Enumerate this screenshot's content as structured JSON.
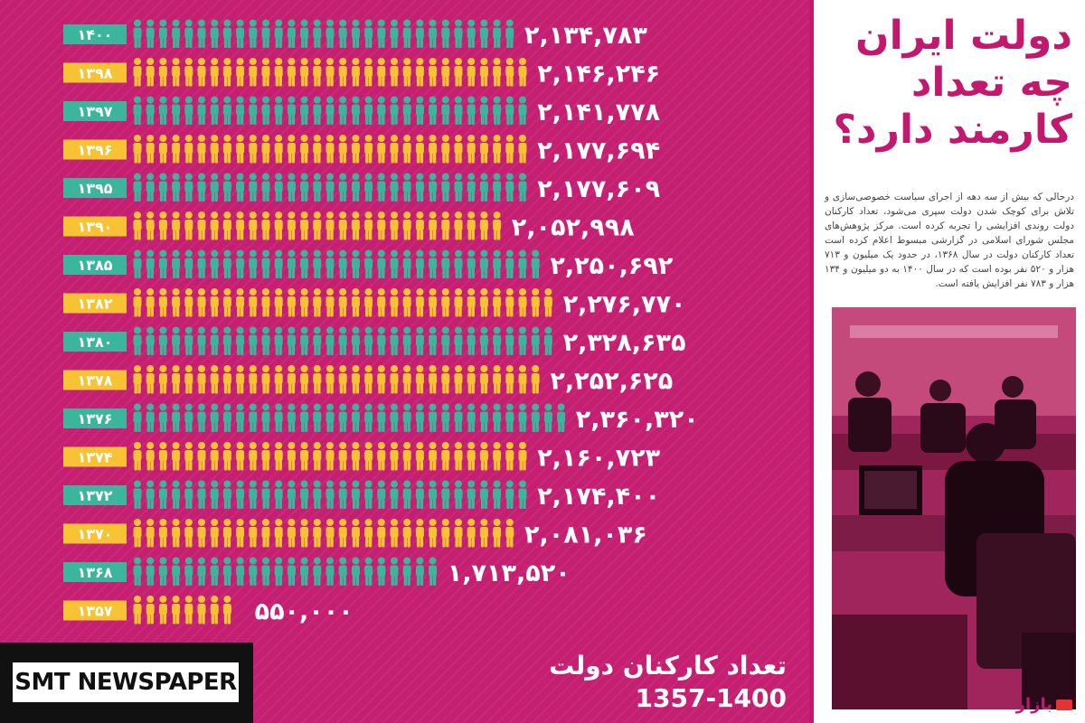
{
  "headline": [
    "دولت ایران",
    "چه تعداد",
    "کارمند دارد؟"
  ],
  "summary": "درحالی که بیش از سه دهه از اجرای سیاست خصوصی‌سازی و تلاش برای کوچک شدن دولت سپری می‌شود، تعداد کارکنان دولت روندی افزایشی را تجربه کرده است. مرکز پژوهش‌های مجلس شورای اسلامی در گزارشی مبسوط اعلام کرده است تعداد کارکنان دولت در سال ۱۳۶۸، در حدود یک میلیون و ۷۱۳ هزار و ۵۲۰ نفر بوده است که در سال ۱۴۰۰ به دو میلیون و ۱۳۴ هزار و ۷۸۳ نفر افزایش یافته است.",
  "brand": "بازار",
  "caption": {
    "title": "تعداد کارکنان دولت",
    "range": "1357-1400"
  },
  "watermark": "SMT NEWSPAPER",
  "colors": {
    "background": "#c51f72",
    "teal": "#3bb59b",
    "yellow": "#f7c234",
    "headline": "#c2186e"
  },
  "chart_data": {
    "type": "bar",
    "title": "تعداد کارکنان دولت",
    "subtitle": "1357-1400",
    "icon": "person-icon",
    "categories": [
      "۱۴۰۰",
      "۱۳۹۸",
      "۱۳۹۷",
      "۱۳۹۶",
      "۱۳۹۵",
      "۱۳۹۰",
      "۱۳۸۵",
      "۱۳۸۲",
      "۱۳۸۰",
      "۱۳۷۸",
      "۱۳۷۶",
      "۱۳۷۴",
      "۱۳۷۲",
      "۱۳۷۰",
      "۱۳۶۸",
      "۱۳۵۷"
    ],
    "values": [
      2134783,
      2146246,
      2141778,
      2177694,
      2177609,
      2052998,
      2250692,
      2276770,
      2328635,
      2252625,
      2360320,
      2160723,
      2174400,
      2081036,
      1713520,
      550000
    ],
    "value_labels": [
      "۲,۱۳۴,۷۸۳",
      "۲,۱۴۶,۲۴۶",
      "۲,۱۴۱,۷۷۸",
      "۲,۱۷۷,۶۹۴",
      "۲,۱۷۷,۶۰۹",
      "۲,۰۵۲,۹۹۸",
      "۲,۲۵۰,۶۹۲",
      "۲,۲۷۶,۷۷۰",
      "۲,۳۲۸,۶۳۵",
      "۲,۲۵۲,۶۲۵",
      "۲,۳۶۰,۳۲۰",
      "۲,۱۶۰,۷۲۳",
      "۲,۱۷۴,۴۰۰",
      "۲,۰۸۱,۰۳۶",
      "۱,۷۱۳,۵۲۰",
      "۵۵۰,۰۰۰"
    ],
    "orientation": "horizontal"
  }
}
